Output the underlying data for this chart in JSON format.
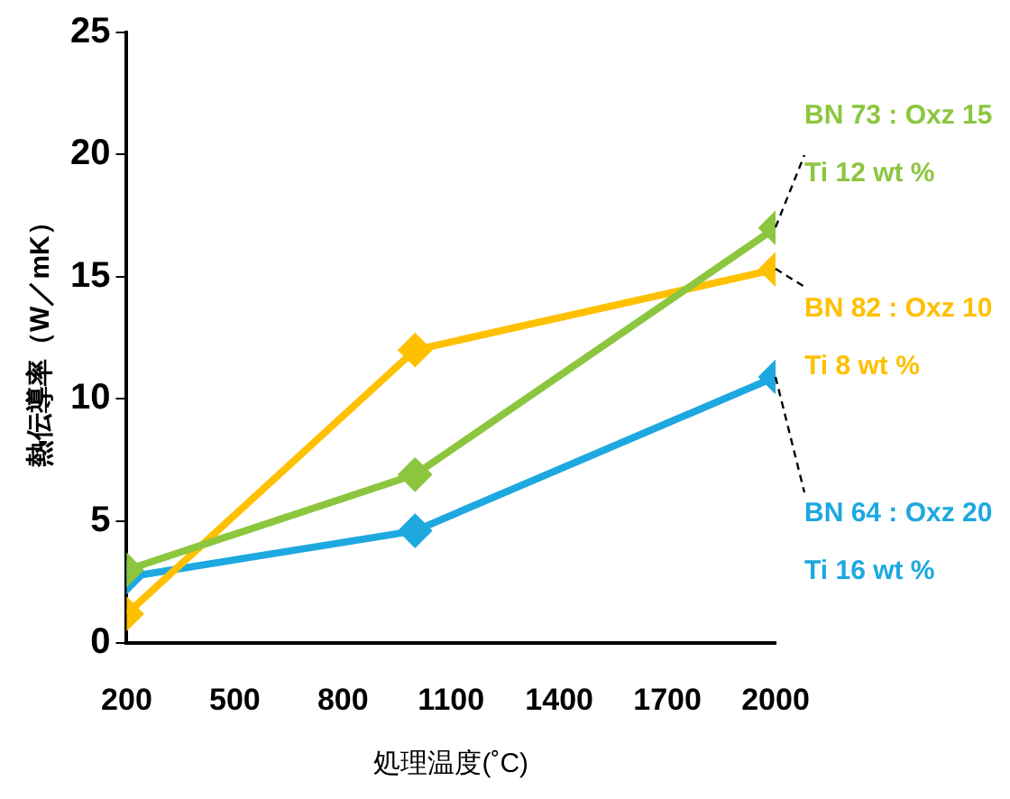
{
  "chart_data": {
    "type": "line",
    "xlabel": "処理温度(˚C)",
    "ylabel": "熱伝導率（W／mK）",
    "x": [
      200,
      1000,
      2000
    ],
    "series": [
      {
        "name": "BN 73 : Oxz 15\nTi 12 wt %",
        "color": "#8cc63f",
        "values": [
          3.0,
          6.9,
          17.0
        ]
      },
      {
        "name": "BN 82 : Oxz 10\nTi 8 wt %",
        "color": "#ffc000",
        "values": [
          1.2,
          12.0,
          15.3
        ]
      },
      {
        "name": "BN 64 : Oxz 20\nTi 16 wt %",
        "color": "#1ea8e0",
        "values": [
          2.7,
          4.6,
          10.9
        ]
      }
    ],
    "xlim": [
      200,
      2000
    ],
    "xticks": [
      200,
      500,
      800,
      1100,
      1400,
      1700,
      2000
    ],
    "ylim": [
      0,
      25
    ],
    "yticks": [
      0,
      5,
      10,
      15,
      20,
      25
    ],
    "grid": false,
    "legend": false,
    "marker": "diamond",
    "line_style": "solid"
  }
}
